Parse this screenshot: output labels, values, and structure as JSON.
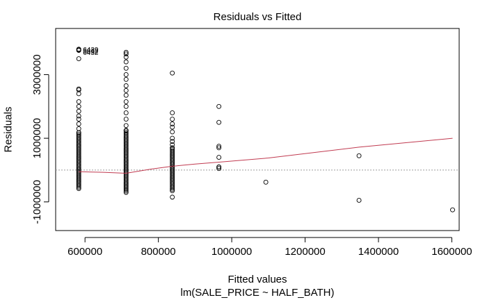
{
  "chart_data": {
    "type": "scatter",
    "title": "Residuals vs Fitted",
    "xlabel": "Fitted values",
    "subtitle": "lm(SALE_PRICE ~ HALF_BATH)",
    "ylabel": "Residuals",
    "xlim": [
      520000,
      1620000
    ],
    "ylim": [
      -1900000,
      4450000
    ],
    "x_ticks": [
      600000,
      800000,
      1000000,
      1200000,
      1400000,
      1600000
    ],
    "x_tick_labels": [
      "600000",
      "800000",
      "1000000",
      "1200000",
      "1400000",
      "1600000"
    ],
    "y_ticks": [
      -1000000,
      1000000,
      3000000
    ],
    "y_tick_labels": [
      "-1000000",
      "1000000",
      "3000000"
    ],
    "zero_line": {
      "y": 0,
      "style": "dotted",
      "color": "#9a9a9a"
    },
    "smoother": {
      "color": "#c0394f",
      "x": [
        583000,
        650000,
        712000,
        780000,
        838000,
        900000,
        965000,
        1100000,
        1347000,
        1602000
      ],
      "y": [
        -50000,
        -70000,
        -100000,
        30000,
        120000,
        190000,
        250000,
        380000,
        720000,
        1000000
      ]
    },
    "groups": [
      {
        "x": 583000,
        "y_min": -580000,
        "y_max": 1180000,
        "extra_y": [
          1300000,
          1450000,
          1600000,
          1700000,
          1850000,
          2000000,
          2150000,
          2400000,
          2520000,
          2550000,
          3500000
        ]
      },
      {
        "x": 712000,
        "y_min": -700000,
        "y_max": 1250000,
        "extra_y": [
          1400000,
          1600000,
          1800000,
          2000000,
          2150000,
          2350000,
          2500000,
          2650000,
          2850000,
          3000000,
          3200000,
          3400000,
          3550000,
          3650000,
          3700000
        ]
      },
      {
        "x": 838000,
        "y_min": -650000,
        "y_max": 700000,
        "extra_y": [
          -850000,
          800000,
          900000,
          1000000,
          1200000,
          1350000,
          1450000,
          1600000,
          1800000,
          3050000
        ]
      },
      {
        "x": 965000,
        "y_min": 50000,
        "y_max": 100000,
        "extra_y": [
          400000,
          700000,
          750000,
          1500000,
          2000000
        ]
      },
      {
        "x": 1093000,
        "y_min": -380000,
        "y_max": -380000,
        "extra_y": []
      },
      {
        "x": 1347000,
        "y_min": 450000,
        "y_max": 450000,
        "extra_y": [
          -950000
        ]
      },
      {
        "x": 1602000,
        "y_min": -1250000,
        "y_max": -1250000,
        "extra_y": []
      }
    ],
    "outliers": [
      {
        "x": 583000,
        "y": 3800000,
        "label": "6439"
      },
      {
        "x": 583000,
        "y": 3780000,
        "label": "5862"
      },
      {
        "x": 583000,
        "y": 3760000,
        "label": "6432"
      }
    ]
  }
}
